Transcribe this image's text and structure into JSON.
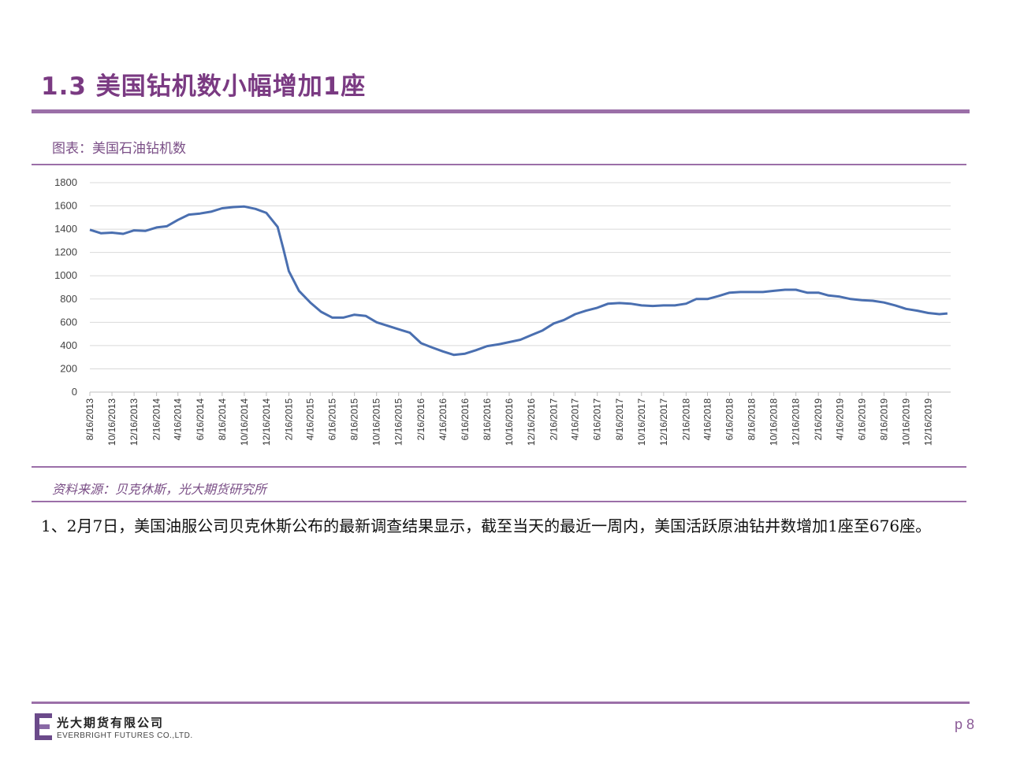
{
  "header": {
    "title": "1.3 美国钻机数小幅增加1座"
  },
  "figure": {
    "caption": "图表：美国石油钻机数",
    "source": "资料来源：贝克休斯，光大期货研究所"
  },
  "body": {
    "text": "1、2月7日，美国油服公司贝克休斯公布的最新调查结果显示，截至当天的最近一周内，美国活跃原油钻井数增加1座至676座。"
  },
  "footer": {
    "company_cn": "光大期货有限公司",
    "company_en": "EVERBRIGHT FUTURES CO.,LTD.",
    "page": "p 8"
  },
  "colors": {
    "accent": "#9b6fa8",
    "title": "#7a3a82",
    "line": "#4a6fb0",
    "grid": "#d9d9d9"
  },
  "chart_data": {
    "type": "line",
    "title": "",
    "xlabel": "",
    "ylabel": "",
    "ylim": [
      0,
      1800
    ],
    "yticks": [
      0,
      200,
      400,
      600,
      800,
      1000,
      1200,
      1400,
      1600,
      1800
    ],
    "categories": [
      "8/16/2013",
      "10/16/2013",
      "12/16/2013",
      "2/16/2014",
      "4/16/2014",
      "6/16/2014",
      "8/16/2014",
      "10/16/2014",
      "12/16/2014",
      "2/16/2015",
      "4/16/2015",
      "6/16/2015",
      "8/16/2015",
      "10/16/2015",
      "12/16/2015",
      "2/16/2016",
      "4/16/2016",
      "6/16/2016",
      "8/16/2016",
      "10/16/2016",
      "12/16/2016",
      "2/16/2017",
      "4/16/2017",
      "6/16/2017",
      "8/16/2017",
      "10/16/2017",
      "12/16/2017",
      "2/16/2018",
      "4/16/2018",
      "6/16/2018",
      "8/16/2018",
      "10/16/2018",
      "12/16/2018",
      "2/16/2019",
      "4/16/2019",
      "6/16/2019",
      "8/16/2019",
      "10/16/2019",
      "12/16/2019"
    ],
    "grid": true,
    "series": [
      {
        "name": "",
        "color": "#4a6fb0",
        "x": [
          "2013-08-16",
          "2013-09-16",
          "2013-10-16",
          "2013-11-16",
          "2013-12-16",
          "2014-01-16",
          "2014-02-16",
          "2014-03-16",
          "2014-04-16",
          "2014-05-16",
          "2014-06-16",
          "2014-07-16",
          "2014-08-16",
          "2014-09-16",
          "2014-10-16",
          "2014-11-16",
          "2014-12-16",
          "2015-01-16",
          "2015-02-01",
          "2015-02-16",
          "2015-03-16",
          "2015-04-16",
          "2015-05-16",
          "2015-06-16",
          "2015-07-16",
          "2015-08-16",
          "2015-09-16",
          "2015-10-16",
          "2015-11-16",
          "2015-12-16",
          "2016-01-16",
          "2016-02-16",
          "2016-03-16",
          "2016-04-16",
          "2016-05-16",
          "2016-06-16",
          "2016-07-16",
          "2016-08-16",
          "2016-09-16",
          "2016-10-16",
          "2016-11-16",
          "2016-12-16",
          "2017-01-16",
          "2017-02-16",
          "2017-03-16",
          "2017-04-16",
          "2017-05-16",
          "2017-06-16",
          "2017-07-16",
          "2017-08-16",
          "2017-09-16",
          "2017-10-16",
          "2017-11-16",
          "2017-12-16",
          "2018-01-16",
          "2018-02-16",
          "2018-03-16",
          "2018-04-16",
          "2018-05-16",
          "2018-06-16",
          "2018-07-16",
          "2018-08-16",
          "2018-09-16",
          "2018-10-16",
          "2018-11-16",
          "2018-12-16",
          "2019-01-16",
          "2019-02-16",
          "2019-03-16",
          "2019-04-16",
          "2019-05-16",
          "2019-06-16",
          "2019-07-16",
          "2019-08-16",
          "2019-09-16",
          "2019-10-16",
          "2019-11-16",
          "2019-12-16",
          "2020-01-16",
          "2020-02-07"
        ],
        "values": [
          1395,
          1365,
          1370,
          1360,
          1390,
          1385,
          1415,
          1425,
          1480,
          1525,
          1535,
          1550,
          1580,
          1590,
          1595,
          1575,
          1540,
          1420,
          1230,
          1040,
          870,
          770,
          690,
          640,
          640,
          665,
          655,
          600,
          570,
          540,
          510,
          420,
          385,
          350,
          320,
          330,
          360,
          395,
          410,
          430,
          450,
          490,
          530,
          590,
          620,
          670,
          700,
          725,
          760,
          765,
          760,
          745,
          740,
          745,
          745,
          760,
          800,
          800,
          825,
          855,
          860,
          860,
          860,
          870,
          880,
          880,
          855,
          855,
          830,
          820,
          800,
          790,
          785,
          770,
          745,
          715,
          700,
          680,
          670,
          676
        ]
      }
    ]
  }
}
